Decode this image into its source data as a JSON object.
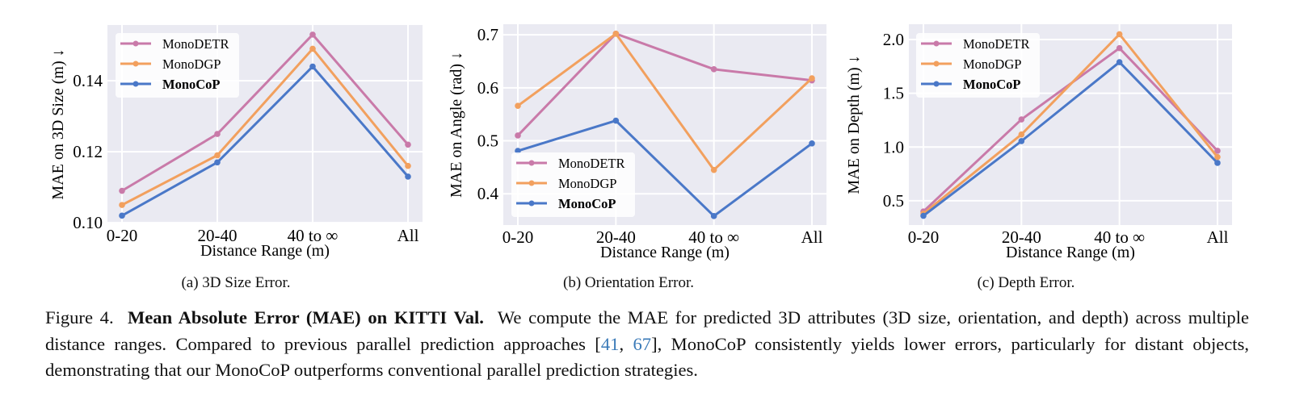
{
  "colors": {
    "MonoDETR": "#c97aa9",
    "MonoDGP": "#f2a05e",
    "MonoCoP": "#4a78c8",
    "background": "#eaeaf2",
    "grid": "#ffffff",
    "cite": "#3a7ab8"
  },
  "chart_data": [
    {
      "type": "line",
      "title": "(a) 3D Size Error.",
      "xlabel": "Distance Range (m)",
      "ylabel": "MAE on 3D Size (m) ↓",
      "categories": [
        "0-20",
        "20-40",
        "40 to ∞",
        "All"
      ],
      "yticks": [
        0.1,
        0.12,
        0.14
      ],
      "ytick_labels": [
        "0.10",
        "0.12",
        "0.14"
      ],
      "ylim": [
        0.0998,
        0.1557
      ],
      "legend": "top-left",
      "grid": true,
      "series": [
        {
          "name": "MonoDETR",
          "values": [
            0.109,
            0.125,
            0.153,
            0.122
          ]
        },
        {
          "name": "MonoDGP",
          "values": [
            0.105,
            0.119,
            0.149,
            0.116
          ]
        },
        {
          "name": "MonoCoP",
          "values": [
            0.102,
            0.117,
            0.144,
            0.113
          ]
        }
      ]
    },
    {
      "type": "line",
      "title": "(b) Orientation Error.",
      "xlabel": "Distance Range (m)",
      "ylabel": "MAE on Angle (rad) ↓",
      "categories": [
        "0-20",
        "20-40",
        "40 to ∞",
        "All"
      ],
      "yticks": [
        0.4,
        0.5,
        0.6,
        0.7
      ],
      "ytick_labels": [
        "0.4",
        "0.5",
        "0.6",
        "0.7"
      ],
      "ylim": [
        0.341,
        0.72
      ],
      "legend": "bottom-left",
      "grid": true,
      "series": [
        {
          "name": "MonoDETR",
          "values": [
            0.51,
            0.702,
            0.635,
            0.614
          ]
        },
        {
          "name": "MonoDGP",
          "values": [
            0.566,
            0.702,
            0.445,
            0.618
          ]
        },
        {
          "name": "MonoCoP",
          "values": [
            0.481,
            0.538,
            0.358,
            0.495
          ]
        }
      ]
    },
    {
      "type": "line",
      "title": "(c) Depth Error.",
      "xlabel": "Distance Range (m)",
      "ylabel": "MAE on Depth (m) ↓",
      "categories": [
        "0-20",
        "20-40",
        "40 to ∞",
        "All"
      ],
      "yticks": [
        0.5,
        1.0,
        1.5,
        2.0
      ],
      "ytick_labels": [
        "0.5",
        "1.0",
        "1.5",
        "2.0"
      ],
      "ylim": [
        0.274,
        2.143
      ],
      "legend": "top-left",
      "grid": true,
      "series": [
        {
          "name": "MonoDETR",
          "values": [
            0.4,
            1.257,
            1.92,
            0.965
          ]
        },
        {
          "name": "MonoDGP",
          "values": [
            0.38,
            1.117,
            2.05,
            0.907
          ]
        },
        {
          "name": "MonoCoP",
          "values": [
            0.36,
            1.055,
            1.79,
            0.852
          ]
        }
      ]
    }
  ],
  "caption": {
    "label": "Figure 4.",
    "bold": "Mean Absolute Error (MAE) on KITTI Val.",
    "text1": "We compute the MAE for predicted 3D attributes (3D size, orientation, and depth) across multiple distance ranges. Compared to previous parallel prediction approaches [",
    "cite1": "41",
    "sep": ", ",
    "cite2": "67",
    "text2": "], MonoCoP consistently yields lower errors, particularly for distant objects, demonstrating that our MonoCoP outperforms conventional parallel prediction strategies."
  }
}
